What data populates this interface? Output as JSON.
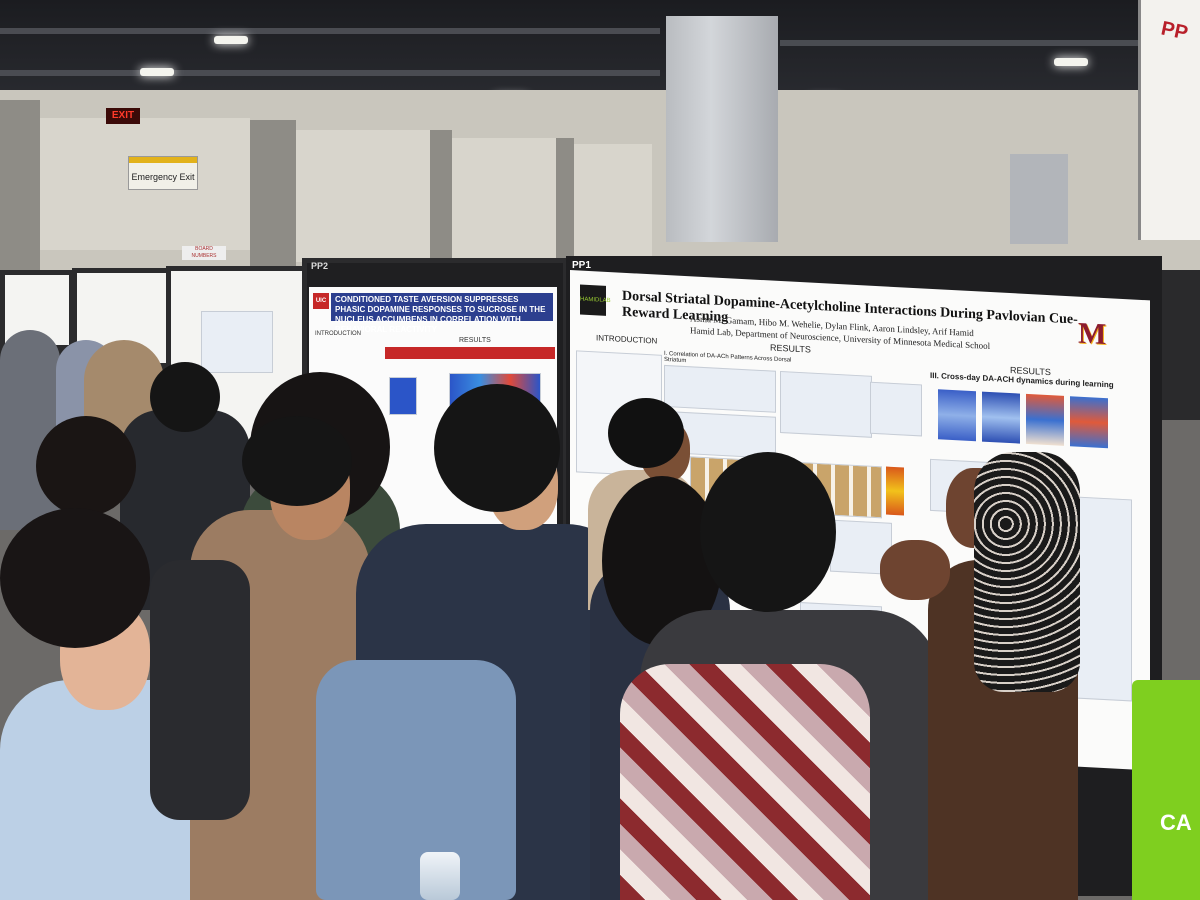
{
  "scene": {
    "description_labels": {
      "exit_sign": "EXIT",
      "emergency_exit_sign": "Emergency Exit",
      "board_number_sign": "BOARD NUMBERS"
    }
  },
  "posters": {
    "main": {
      "board_label": "PP1",
      "title": "Dorsal Striatal Dopamine-Acetylcholine Interactions During Pavlovian Cue-Reward Learning",
      "authors": "Asma M. Gamam, Hibo M. Wehelie, Dylan Flink, Aaron Lindsley, Arif Hamid",
      "affiliation": "Hamid Lab, Department of Neuroscience, University of Minnesota Medical School",
      "logo_text": "M",
      "lab_logo_text": "HAMIDLAB",
      "sections": {
        "introduction": "INTRODUCTION",
        "results": "RESULTS",
        "results_right": "RESULTS",
        "panel_iii": "III. Cross-day DA-ACH dynamics during learning",
        "panel_i": "I. Correlation of DA-ACh Patterns Across Dorsal Striatum"
      }
    },
    "left": {
      "board_label": "PP2",
      "logo_text": "UIC",
      "title": "CONDITIONED TASTE AVERSION SUPPRESSES PHASIC DOPAMINE RESPONSES TO SUCROSE IN THE NUCLEUS ACCUMBENS IN CORRELATION WITH BEHAVIORAL REACTIVITY",
      "sections": {
        "introduction": "INTRODUCTION",
        "results": "RESULTS"
      }
    }
  },
  "signage": {
    "green_bin_text": "CA",
    "side_banner_text": "PP"
  },
  "colors": {
    "mn_maroon": "#8c1c2e",
    "mn_gold": "#f5b21a",
    "uic_blue": "#2c3f8f",
    "bin_green": "#7fcf1f"
  }
}
